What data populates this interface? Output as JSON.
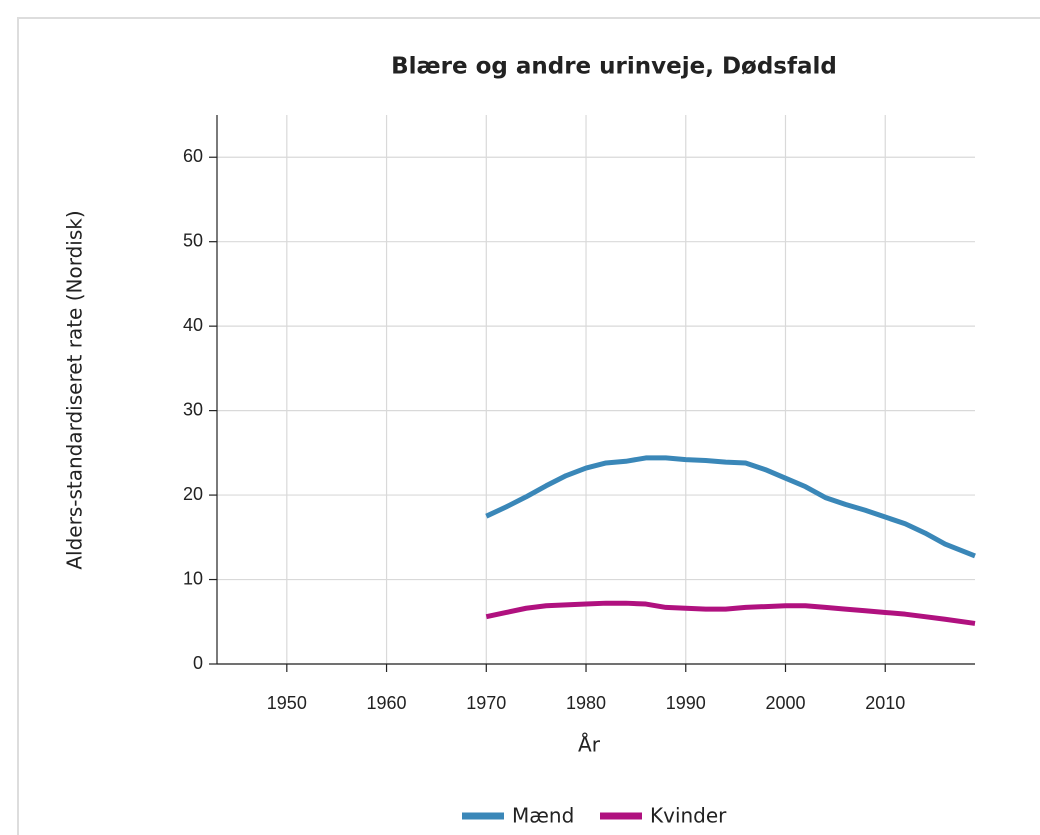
{
  "chart_data": {
    "type": "line",
    "title": "Blære og andre urinveje, Dødsfald",
    "xlabel": "År",
    "ylabel": "Alders-standardiseret rate (Nordisk)",
    "x": [
      1970,
      1972,
      1974,
      1976,
      1978,
      1980,
      1982,
      1984,
      1986,
      1988,
      1990,
      1992,
      1994,
      1996,
      1998,
      2000,
      2002,
      2004,
      2006,
      2008,
      2010,
      2012,
      2014,
      2016,
      2019
    ],
    "series": [
      {
        "name": "Mænd",
        "color": "#3a87b8",
        "values": [
          17.5,
          18.6,
          19.8,
          21.1,
          22.3,
          23.2,
          23.8,
          24.0,
          24.4,
          24.4,
          24.2,
          24.1,
          23.9,
          23.8,
          23.0,
          22.0,
          21.0,
          19.7,
          18.9,
          18.2,
          17.4,
          16.6,
          15.5,
          14.2,
          12.8
        ]
      },
      {
        "name": "Kvinder",
        "color": "#b0117f",
        "values": [
          5.6,
          6.1,
          6.6,
          6.9,
          7.0,
          7.1,
          7.2,
          7.2,
          7.1,
          6.7,
          6.6,
          6.5,
          6.5,
          6.7,
          6.8,
          6.9,
          6.9,
          6.7,
          6.5,
          6.3,
          6.1,
          5.9,
          5.6,
          5.3,
          4.8
        ]
      }
    ],
    "xlim": [
      1943,
      2019
    ],
    "xticks": [
      1950,
      1960,
      1970,
      1980,
      1990,
      2000,
      2010
    ],
    "ylim": [
      0,
      65
    ],
    "yticks": [
      0,
      10,
      20,
      30,
      40,
      50,
      60
    ],
    "grid": true,
    "legend": "bottom"
  }
}
